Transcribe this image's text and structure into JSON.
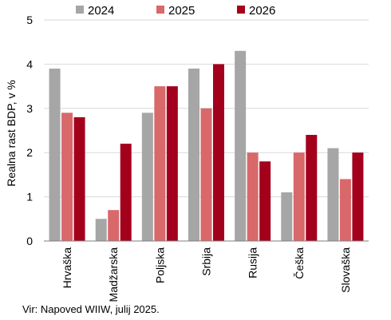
{
  "chart_data": {
    "type": "bar",
    "categories": [
      "Hrvaška",
      "Madžarska",
      "Poljska",
      "Srbija",
      "Rusija",
      "Češka",
      "Slovaška"
    ],
    "series": [
      {
        "name": "2024",
        "color": "#a6a6a6",
        "values": [
          3.9,
          0.5,
          2.9,
          3.9,
          4.3,
          1.1,
          2.1
        ]
      },
      {
        "name": "2025",
        "color": "#d9686b",
        "values": [
          2.9,
          0.7,
          3.5,
          3.0,
          2.0,
          2.0,
          1.4
        ]
      },
      {
        "name": "2026",
        "color": "#a3001c",
        "values": [
          2.8,
          2.2,
          3.5,
          4.0,
          1.8,
          2.4,
          2.0
        ]
      }
    ],
    "ylabel": "Realna rast BDP, v %",
    "ylim": [
      0,
      5
    ],
    "yticks": [
      0,
      1,
      2,
      3,
      4,
      5
    ],
    "grid": true,
    "legend": "top"
  },
  "source": "Vir: Napoved WIIW, julij 2025."
}
